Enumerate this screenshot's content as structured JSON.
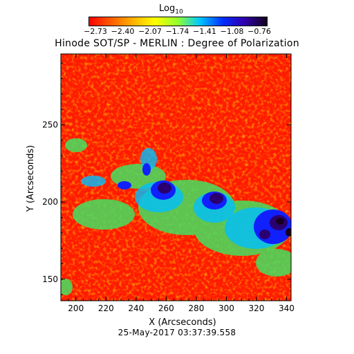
{
  "colorbar": {
    "title_base": "Log",
    "title_sub": "10",
    "tick_labels": [
      "-2.73",
      "-2.40",
      "-2.07",
      "-1.74",
      "-1.41",
      "-1.08",
      "-0.76"
    ]
  },
  "title": "Hinode SOT/SP - MERLIN : Degree of Polarization",
  "axes": {
    "xlabel": "X (Arcseconds)",
    "ylabel": "Y (Arcseconds)",
    "xticks": [
      "200",
      "220",
      "240",
      "260",
      "280",
      "300",
      "320",
      "340"
    ],
    "yticks": [
      "150",
      "200",
      "250"
    ]
  },
  "date": "25-May-2017 03:37:39.558",
  "colors": {
    "low": "#ff0000",
    "mid": "#ffff00",
    "high": "#0000ff",
    "peak": "#14001e"
  }
}
